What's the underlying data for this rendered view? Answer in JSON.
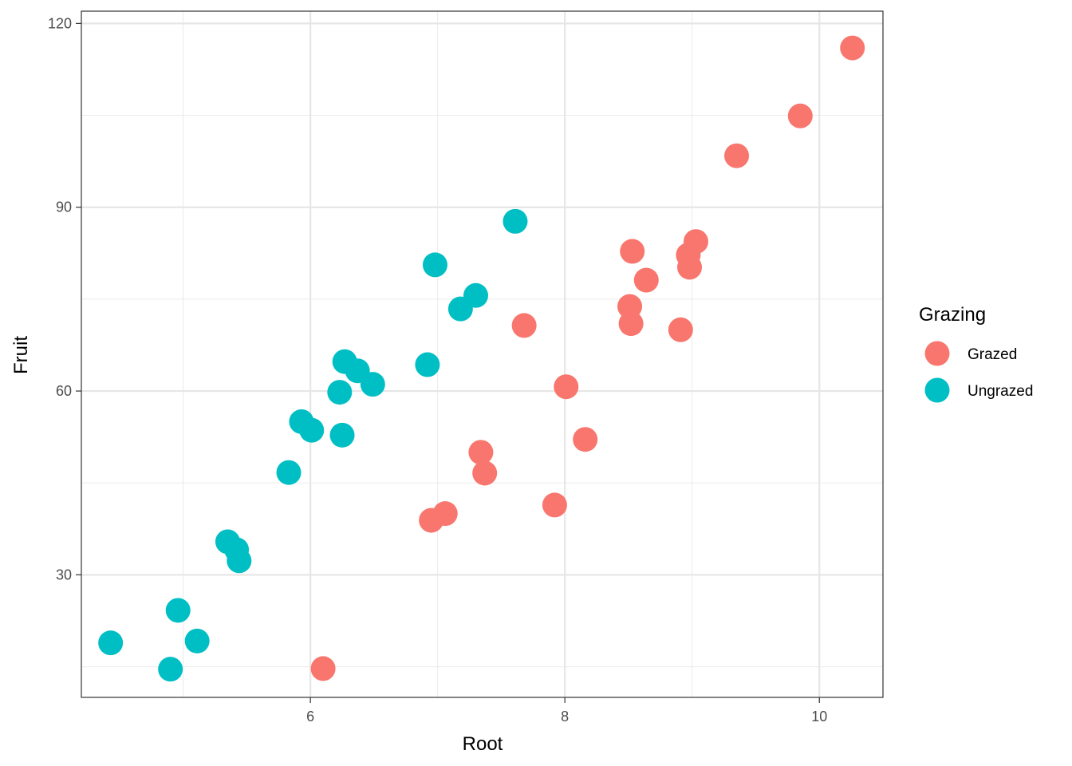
{
  "chart_data": {
    "type": "scatter",
    "xlabel": "Root",
    "ylabel": "Fruit",
    "xlim": [
      4.2,
      10.5
    ],
    "ylim": [
      10,
      122
    ],
    "x_ticks": [
      6,
      8,
      10
    ],
    "y_ticks": [
      30,
      60,
      90,
      120
    ],
    "x_minor_ticks": [
      5,
      7,
      9
    ],
    "y_minor_ticks": [
      15,
      45,
      75,
      105
    ],
    "grid": true,
    "legend": {
      "title": "Grazing",
      "position": "right",
      "entries": [
        {
          "label": "Grazed",
          "color": "#F8766D"
        },
        {
          "label": "Ungrazed",
          "color": "#00BFC4"
        }
      ]
    },
    "series": [
      {
        "name": "Grazed",
        "color": "#F8766D",
        "points": [
          [
            6.1,
            14.7
          ],
          [
            6.95,
            38.9
          ],
          [
            7.06,
            40.0
          ],
          [
            7.34,
            50.0
          ],
          [
            7.37,
            46.6
          ],
          [
            7.68,
            70.7
          ],
          [
            7.92,
            41.4
          ],
          [
            8.01,
            60.7
          ],
          [
            8.16,
            52.1
          ],
          [
            8.51,
            73.8
          ],
          [
            8.52,
            71.0
          ],
          [
            8.53,
            82.8
          ],
          [
            8.64,
            78.1
          ],
          [
            8.91,
            70.0
          ],
          [
            8.97,
            82.2
          ],
          [
            8.98,
            80.2
          ],
          [
            9.03,
            84.4
          ],
          [
            9.35,
            98.4
          ],
          [
            9.85,
            104.9
          ],
          [
            10.26,
            116.0
          ]
        ]
      },
      {
        "name": "Ungrazed",
        "color": "#00BFC4",
        "points": [
          [
            4.43,
            18.9
          ],
          [
            4.9,
            14.6
          ],
          [
            4.96,
            24.2
          ],
          [
            5.11,
            19.2
          ],
          [
            5.35,
            35.4
          ],
          [
            5.44,
            32.3
          ],
          [
            5.42,
            34.1
          ],
          [
            5.83,
            46.7
          ],
          [
            5.93,
            55.0
          ],
          [
            6.01,
            53.6
          ],
          [
            6.23,
            59.8
          ],
          [
            6.25,
            52.8
          ],
          [
            6.27,
            64.8
          ],
          [
            6.37,
            63.3
          ],
          [
            6.49,
            61.1
          ],
          [
            6.92,
            64.3
          ],
          [
            6.98,
            80.6
          ],
          [
            7.18,
            73.4
          ],
          [
            7.3,
            75.6
          ],
          [
            7.61,
            87.7
          ]
        ]
      }
    ]
  }
}
